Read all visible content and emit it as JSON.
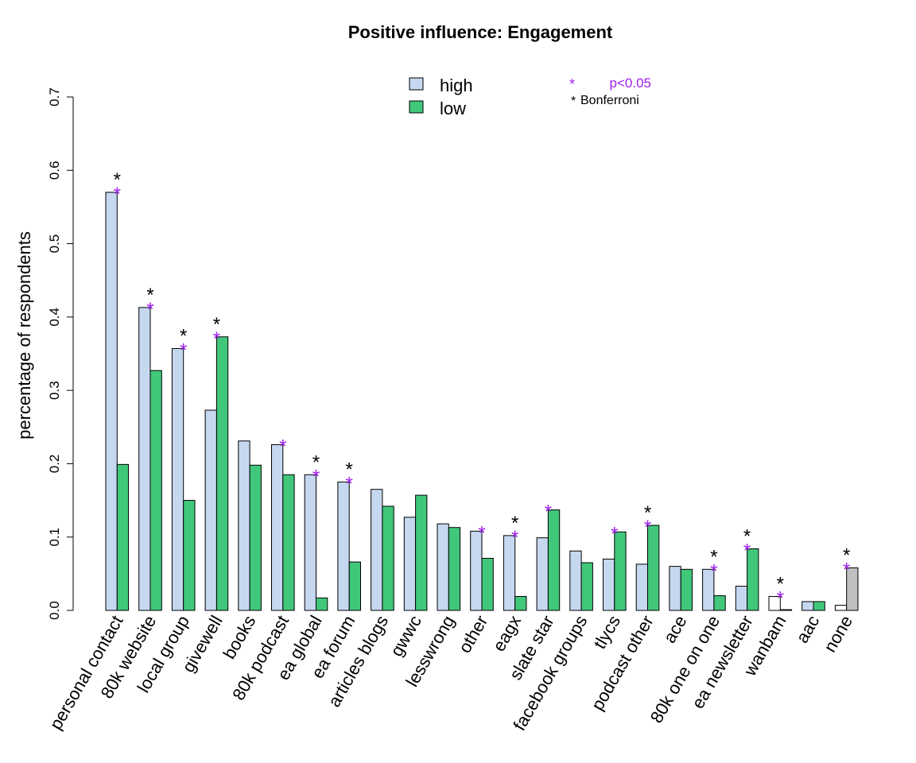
{
  "chart_data": {
    "type": "bar",
    "title": "Positive influence: Engagement",
    "xlabel": "",
    "ylabel": "percentage of respondents",
    "ylim": [
      0,
      0.7
    ],
    "yticks": [
      "0.0",
      "0.1",
      "0.2",
      "0.3",
      "0.4",
      "0.5",
      "0.6",
      "0.7"
    ],
    "categories": [
      "personal contact",
      "80k website",
      "local group",
      "givewell",
      "books",
      "80k podcast",
      "ea global",
      "ea forum",
      "articles blogs",
      "gwwc",
      "lesswrong",
      "other",
      "eagx",
      "slate star",
      "facebook groups",
      "tlycs",
      "podcast other",
      "ace",
      "80k one on one",
      "ea newsletter",
      "wanbam",
      "aac",
      "none"
    ],
    "series": [
      {
        "name": "high",
        "color": "#c6d8f0",
        "values": [
          0.57,
          0.413,
          0.357,
          0.273,
          0.231,
          0.226,
          0.185,
          0.175,
          0.165,
          0.127,
          0.118,
          0.108,
          0.102,
          0.099,
          0.081,
          0.07,
          0.063,
          0.06,
          0.056,
          0.033,
          0.019,
          0.012,
          0.007
        ]
      },
      {
        "name": "low",
        "color": "#41c77a",
        "values": [
          0.199,
          0.327,
          0.15,
          0.373,
          0.198,
          0.185,
          0.017,
          0.066,
          0.142,
          0.157,
          0.113,
          0.071,
          0.019,
          0.137,
          0.065,
          0.107,
          0.116,
          0.056,
          0.02,
          0.084,
          0.001,
          0.012,
          0.058
        ]
      }
    ],
    "special_colors": {
      "wanbam": [
        "#ffffff",
        "#ffffff"
      ],
      "aac": [
        "#c6d8f0",
        "#41c77a"
      ],
      "none": [
        "#ffffff",
        "#c0c0c0"
      ]
    },
    "significance": {
      "p05": [
        true,
        true,
        true,
        true,
        false,
        true,
        true,
        true,
        false,
        false,
        false,
        true,
        true,
        true,
        false,
        true,
        true,
        false,
        true,
        true,
        true,
        false,
        true
      ],
      "bonferroni": [
        true,
        true,
        true,
        true,
        false,
        false,
        true,
        true,
        false,
        false,
        false,
        false,
        true,
        false,
        false,
        false,
        true,
        false,
        true,
        true,
        true,
        false,
        true
      ]
    },
    "sig_legend": {
      "p05_symbol": "*",
      "p05_label": "p<0.05",
      "bonf_symbol": "*",
      "bonf_label": "Bonferroni",
      "p05_color": "#a020f0",
      "bonf_color": "#000000"
    },
    "legend_position": "top-center"
  }
}
